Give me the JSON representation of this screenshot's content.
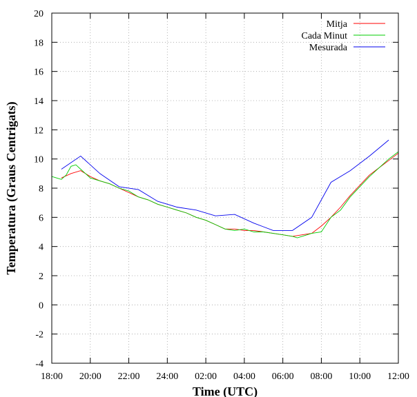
{
  "chart_data": {
    "type": "line",
    "xlabel": "Time (UTC)",
    "ylabel": "Temperatura (Graus Centrigats)",
    "xlim": [
      18,
      36
    ],
    "ylim": [
      -4,
      20
    ],
    "x_ticks": [
      18,
      20,
      22,
      24,
      26,
      28,
      30,
      32,
      34,
      36
    ],
    "x_tick_labels": [
      "18:00",
      "20:00",
      "22:00",
      "24:00",
      "02:00",
      "04:00",
      "06:00",
      "08:00",
      "10:00",
      "12:00"
    ],
    "y_ticks": [
      -4,
      -2,
      0,
      2,
      4,
      6,
      8,
      10,
      12,
      14,
      16,
      18,
      20
    ],
    "y_tick_labels": [
      "-4",
      "-2",
      "0",
      "2",
      "4",
      "6",
      "8",
      "10",
      "12",
      "14",
      "16",
      "18",
      "20"
    ],
    "grid": true,
    "legend_position": "top-right",
    "series": [
      {
        "name": "Mitja",
        "color": "#ff0000",
        "x": [
          18.5,
          19.0,
          19.5,
          20.0,
          20.5,
          21.0,
          21.5,
          22.0,
          22.5,
          23.0,
          23.5,
          24.0,
          24.5,
          25.0,
          25.5,
          26.0,
          26.5,
          27.0,
          27.5,
          28.0,
          28.5,
          29.0,
          29.5,
          30.0,
          30.5,
          31.0,
          31.5,
          32.0,
          32.5,
          33.0,
          33.5,
          34.0,
          34.5,
          35.0,
          35.5,
          36.0
        ],
        "y": [
          8.7,
          9.0,
          9.2,
          8.8,
          8.5,
          8.3,
          8.0,
          7.7,
          7.4,
          7.2,
          6.9,
          6.7,
          6.5,
          6.3,
          6.0,
          5.8,
          5.5,
          5.2,
          5.2,
          5.1,
          5.1,
          5.0,
          4.9,
          4.8,
          4.7,
          4.8,
          4.9,
          5.4,
          6.0,
          6.7,
          7.5,
          8.2,
          8.9,
          9.4,
          9.9,
          10.4
        ]
      },
      {
        "name": "Cada Minut",
        "color": "#00cc00",
        "x": [
          18.0,
          18.25,
          18.5,
          18.75,
          19.0,
          19.25,
          19.5,
          19.75,
          20.0,
          20.5,
          21.0,
          21.5,
          22.0,
          22.5,
          23.0,
          23.5,
          24.0,
          24.5,
          25.0,
          25.5,
          26.0,
          26.5,
          27.0,
          27.5,
          28.0,
          28.5,
          29.0,
          29.5,
          30.0,
          30.5,
          30.75,
          31.0,
          31.5,
          32.0,
          32.5,
          33.0,
          33.5,
          34.0,
          34.5,
          35.0,
          35.5,
          36.0
        ],
        "y": [
          8.8,
          8.7,
          8.6,
          8.9,
          9.5,
          9.6,
          9.3,
          9.0,
          8.7,
          8.5,
          8.3,
          8.0,
          7.8,
          7.4,
          7.2,
          6.9,
          6.7,
          6.5,
          6.3,
          6.0,
          5.8,
          5.5,
          5.2,
          5.1,
          5.2,
          5.0,
          5.0,
          4.9,
          4.8,
          4.7,
          4.6,
          4.7,
          4.9,
          5.0,
          6.0,
          6.5,
          7.4,
          8.1,
          8.8,
          9.4,
          10.0,
          10.5
        ]
      },
      {
        "name": "Mesurada",
        "color": "#0000ee",
        "x": [
          18.5,
          19.5,
          20.5,
          21.5,
          22.5,
          23.5,
          24.5,
          25.5,
          26.5,
          27.5,
          28.5,
          29.5,
          30.5,
          31.5,
          32.5,
          33.5,
          34.5,
          35.5
        ],
        "y": [
          9.3,
          10.2,
          9.0,
          8.1,
          7.9,
          7.1,
          6.7,
          6.5,
          6.1,
          6.2,
          5.6,
          5.1,
          5.1,
          6.0,
          8.4,
          9.2,
          10.2,
          11.3
        ]
      }
    ]
  }
}
